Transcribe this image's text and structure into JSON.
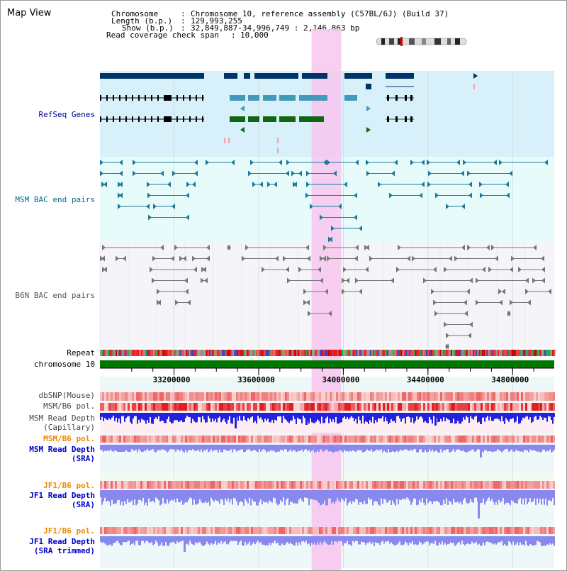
{
  "title": "Map View",
  "info": {
    "chromosome_key": "Chromosome",
    "chromosome_val": "Chromosome 10, reference assembly (C57BL/6J) (Build 37)",
    "length_key": "Length (b.p.)",
    "length_val": "129,993,255",
    "show_key": "Show (b.p.)",
    "show_val": "32,849,887-34,996,749 : 2,146,863 bp",
    "coverage_key": "Read coverage check span",
    "coverage_val": "10,000"
  },
  "tracks": [
    {
      "label": "RefSeq Genes",
      "color": "#000099"
    },
    {
      "label": "MSM BAC end pairs",
      "color": "#006c8c"
    },
    {
      "label": "B6N BAC end pairs",
      "color": "#555555"
    },
    {
      "label": "Repeat",
      "color": "#000000"
    },
    {
      "label": "chromosome 10",
      "color": "#000000"
    },
    {
      "label": "dbSNP(Mouse)",
      "color": "#444444"
    },
    {
      "label": "MSM/B6 pol.",
      "color": "#444444"
    },
    {
      "label": "MSM Read Depth\n(Capillary)",
      "color": "#444444"
    },
    {
      "label": "MSM/B6 pol.",
      "color": "#ee8800"
    },
    {
      "label": "MSM Read Depth\n(SRA)",
      "color": "#0000cc"
    },
    {
      "label": "JF1/B6 pol.",
      "color": "#ee8800"
    },
    {
      "label": "JF1 Read Depth\n(SRA)",
      "color": "#0000cc"
    },
    {
      "label": "JF1/B6 pol.",
      "color": "#ee8800"
    },
    {
      "label": "JF1 Read Depth\n(SRA trimmed)",
      "color": "#0000cc"
    }
  ],
  "axis": {
    "ticks": [
      "33200000",
      "33600000",
      "34000000",
      "34400000",
      "34800000"
    ],
    "tick_values": [
      33200000,
      33600000,
      34000000,
      34400000,
      34800000
    ],
    "start": 32849887,
    "end": 34996749
  },
  "highlight": {
    "start": 33850000,
    "end": 33990000,
    "color": "#f7c6ee"
  },
  "colors": {
    "refseq_bg": "#d8f0fa",
    "msm_bg": "#e8fbfb",
    "b6n_bg": "#f4f4f9",
    "chromosome": "#007700",
    "gene_dark": "#003366",
    "gene_mid": "#4499bb",
    "gene_green": "#116611",
    "msm_pair": "#1f7a99",
    "b6n_pair": "#777777",
    "snp": "#f08080",
    "depth_blue": "#2222dd",
    "depth_light": "#8888ee"
  }
}
